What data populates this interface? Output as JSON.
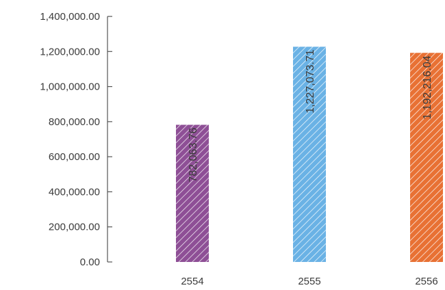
{
  "chart_data": {
    "type": "bar",
    "title": "",
    "xlabel": "",
    "ylabel": "",
    "categories": [
      "2554",
      "2555",
      "2556"
    ],
    "values": [
      782063.76,
      1227073.71,
      1192216.04
    ],
    "value_labels": [
      "782,063.76",
      "1,227,073.71",
      "1,192,216.04"
    ],
    "bar_colors": [
      "#8e4f96",
      "#6ab2e5",
      "#e87134"
    ],
    "bar_pattern": "diagonal-hatch",
    "ylim": [
      0,
      1400000
    ],
    "yticks": [
      0,
      200000,
      400000,
      600000,
      800000,
      1000000,
      1200000,
      1400000
    ],
    "ytick_labels": [
      "0.00",
      "200,000.00",
      "400,000.00",
      "600,000.00",
      "800,000.00",
      "1,000,000.00",
      "1,200,000.00",
      "1,400,000.00"
    ],
    "grid": false,
    "legend": false
  }
}
